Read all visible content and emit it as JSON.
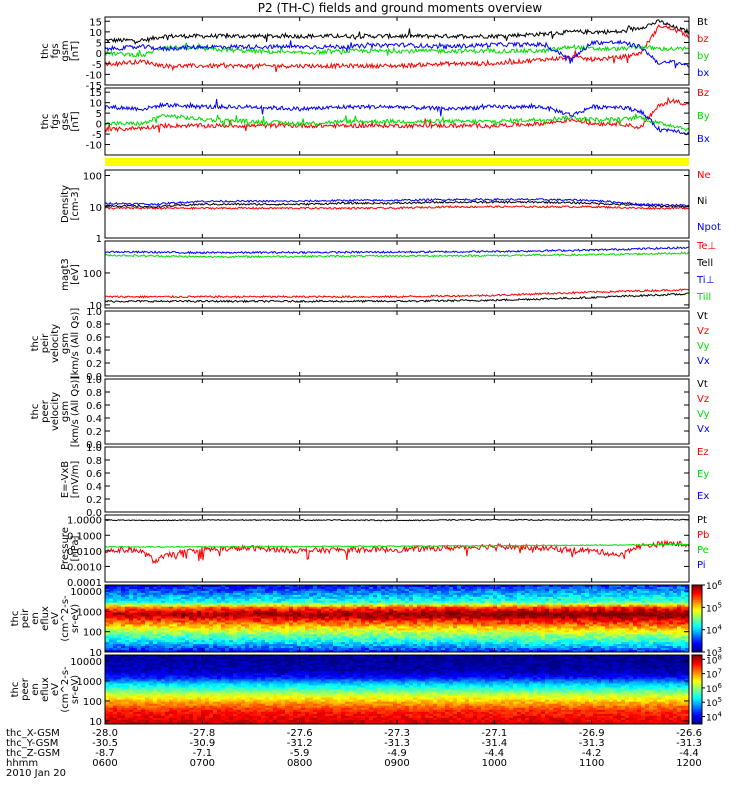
{
  "chart_data": {
    "type": "line",
    "title": "P2 (TH-C) fields and ground moments overview",
    "date": "2010 Jan 20",
    "x_axis": {
      "label": "hhmm",
      "ticks": [
        "0600",
        "0700",
        "0800",
        "0900",
        "1000",
        "1100",
        "1200"
      ],
      "ephemeris": [
        {
          "label": "thc_X-GSM",
          "values": [
            "-28.0",
            "-27.8",
            "-27.6",
            "-27.3",
            "-27.1",
            "-26.9",
            "-26.6"
          ]
        },
        {
          "label": "thc_Y-GSM",
          "values": [
            "-30.5",
            "-30.9",
            "-31.2",
            "-31.3",
            "-31.4",
            "-31.3",
            "-31.3"
          ]
        },
        {
          "label": "thc_Z-GSM",
          "values": [
            "-8.7",
            "-7.1",
            "-5.9",
            "-4.9",
            "-4.4",
            "-4.2",
            "-4.4"
          ]
        }
      ]
    },
    "panels": [
      {
        "id": "fgs-gsm",
        "ylabel": [
          "thc",
          "fgs",
          "gsm",
          "[nT]"
        ],
        "scale": "linear",
        "ylim": [
          -15,
          17
        ],
        "yticks": [
          "-15",
          "-10",
          "-5",
          "0",
          "5",
          "10",
          "15"
        ],
        "series": [
          {
            "name": "Bt",
            "color": "#000000",
            "x": [
              6.0,
              6.4,
              6.6,
              7.0,
              7.5,
              8.0,
              8.5,
              9.0,
              9.5,
              10.0,
              10.5,
              10.8,
              11.0,
              11.3,
              11.5,
              11.7,
              11.85,
              12.0
            ],
            "y": [
              6,
              6,
              8,
              8,
              8,
              8,
              8,
              8,
              8,
              8,
              9,
              10,
              10,
              10,
              12,
              15,
              12,
              10
            ]
          },
          {
            "name": "bz",
            "color": "#ff0000",
            "x": [
              6.0,
              6.4,
              6.6,
              7.0,
              7.5,
              8.0,
              8.5,
              9.0,
              9.5,
              10.0,
              10.5,
              10.8,
              11.0,
              11.3,
              11.5,
              11.7,
              11.85,
              12.0
            ],
            "y": [
              -5,
              -4,
              -6,
              -6,
              -6,
              -6,
              -6,
              -6,
              -5,
              -5,
              -3,
              -2,
              -3,
              -2,
              0,
              13,
              11,
              8
            ]
          },
          {
            "name": "by",
            "color": "#00dd00",
            "x": [
              6.0,
              6.4,
              6.6,
              7.0,
              7.5,
              8.0,
              8.5,
              9.0,
              9.5,
              10.0,
              10.5,
              10.8,
              11.0,
              11.3,
              11.5,
              11.7,
              11.85,
              12.0
            ],
            "y": [
              0,
              -1,
              3,
              2,
              1,
              0,
              1,
              1,
              1,
              1,
              1,
              3,
              2,
              2,
              3,
              2,
              2,
              2
            ]
          },
          {
            "name": "bx",
            "color": "#0000ff",
            "x": [
              6.0,
              6.4,
              6.6,
              7.0,
              7.5,
              8.0,
              8.5,
              9.0,
              9.5,
              10.0,
              10.5,
              10.8,
              11.0,
              11.3,
              11.5,
              11.7,
              11.85,
              12.0
            ],
            "y": [
              2,
              3,
              2,
              3,
              3,
              3,
              3,
              4,
              3,
              4,
              4,
              -3,
              5,
              5,
              3,
              -5,
              -4,
              -6
            ]
          }
        ]
      },
      {
        "id": "fgs-gse",
        "ylabel": [
          "thc",
          "fgs",
          "gse",
          "[nT]"
        ],
        "scale": "linear",
        "ylim": [
          -15,
          17
        ],
        "yticks": [
          "-10",
          "-5",
          "0",
          "5",
          "10",
          "15"
        ],
        "series": [
          {
            "name": "Bz",
            "color": "#ff0000",
            "x": [
              6.0,
              6.4,
              6.6,
              7.0,
              7.5,
              8.0,
              8.5,
              9.0,
              9.5,
              10.0,
              10.5,
              10.8,
              11.0,
              11.3,
              11.5,
              11.7,
              11.85,
              12.0
            ],
            "y": [
              -3,
              -2,
              -1,
              -1,
              -1,
              -1,
              -1,
              -1,
              -1,
              -1,
              0,
              2,
              0,
              0,
              -2,
              9,
              11,
              9
            ]
          },
          {
            "name": "By",
            "color": "#00dd00",
            "x": [
              6.0,
              6.4,
              6.6,
              7.0,
              7.5,
              8.0,
              8.5,
              9.0,
              9.5,
              10.0,
              10.5,
              10.8,
              11.0,
              11.3,
              11.5,
              11.7,
              11.85,
              12.0
            ],
            "y": [
              0,
              0,
              4,
              2,
              1,
              0,
              1,
              1,
              1,
              1,
              2,
              3,
              2,
              2,
              3,
              0,
              -1,
              -3
            ]
          },
          {
            "name": "Bx",
            "color": "#0000ff",
            "x": [
              6.0,
              6.4,
              6.6,
              7.0,
              7.5,
              8.0,
              8.5,
              9.0,
              9.5,
              10.0,
              10.5,
              10.8,
              11.0,
              11.3,
              11.5,
              11.7,
              11.85,
              12.0
            ],
            "y": [
              8,
              7,
              9,
              8,
              8,
              7,
              8,
              8,
              7,
              8,
              8,
              4,
              8,
              8,
              6,
              -3,
              -3,
              -5
            ]
          }
        ]
      },
      {
        "id": "mode-bar",
        "type": "bar",
        "color": "#ffff00"
      },
      {
        "id": "density",
        "ylabel": [
          "Density",
          "[cm-3]"
        ],
        "scale": "log",
        "ylim": [
          1,
          150
        ],
        "yticks": [
          "1",
          "10",
          "100"
        ],
        "series": [
          {
            "name": "Ne",
            "color": "#ff0000",
            "x": [
              6.0,
              6.5,
              7.0,
              7.5,
              8.0,
              8.5,
              9.0,
              9.5,
              10.0,
              10.5,
              11.0,
              11.5,
              12.0
            ],
            "y": [
              9,
              9,
              9,
              9,
              9,
              9,
              9,
              10,
              10,
              10,
              10,
              9,
              9
            ]
          },
          {
            "name": "Ni",
            "color": "#000000",
            "x": [
              6.0,
              6.5,
              7.0,
              7.5,
              8.0,
              8.5,
              9.0,
              9.5,
              10.0,
              10.5,
              11.0,
              11.5,
              12.0
            ],
            "y": [
              11,
              10,
              12,
              12,
              12,
              13,
              13,
              14,
              14,
              14,
              13,
              11,
              10
            ]
          },
          {
            "name": "Npot",
            "color": "#0000ff",
            "x": [
              6.0,
              6.5,
              7.0,
              7.5,
              8.0,
              8.5,
              9.0,
              9.5,
              10.0,
              10.5,
              11.0,
              11.5,
              12.0
            ],
            "y": [
              13,
              12,
              15,
              15,
              15,
              16,
              16,
              17,
              17,
              17,
              16,
              12,
              11
            ]
          }
        ]
      },
      {
        "id": "temperature",
        "ylabel": [
          "magt3",
          "[eV]"
        ],
        "scale": "log",
        "ylim": [
          8,
          1000
        ],
        "yticks": [
          "10",
          "100"
        ],
        "series": [
          {
            "name": "Te⊥",
            "color": "#ff0000",
            "x": [
              6.0,
              7.0,
              8.0,
              9.0,
              10.0,
              11.0,
              12.0
            ],
            "y": [
              18,
              18,
              18,
              18,
              20,
              25,
              30
            ]
          },
          {
            "name": "Tell",
            "color": "#000000",
            "x": [
              6.0,
              7.0,
              8.0,
              9.0,
              10.0,
              11.0,
              12.0
            ],
            "y": [
              13,
              13,
              13,
              13,
              14,
              17,
              22
            ]
          },
          {
            "name": "Ti⊥",
            "color": "#0000ff",
            "x": [
              6.0,
              7.0,
              8.0,
              9.0,
              10.0,
              11.0,
              12.0
            ],
            "y": [
              460,
              430,
              440,
              450,
              470,
              520,
              620
            ]
          },
          {
            "name": "Till",
            "color": "#00dd00",
            "x": [
              6.0,
              7.0,
              8.0,
              9.0,
              10.0,
              11.0,
              12.0
            ],
            "y": [
              360,
              320,
              330,
              340,
              350,
              370,
              420
            ]
          }
        ]
      },
      {
        "id": "peir-velocity",
        "ylabel": [
          "thc",
          "peir",
          "velocity",
          "gsm",
          "[km/s (All Qs)]"
        ],
        "scale": "linear",
        "ylim": [
          0,
          1
        ],
        "yticks": [
          "0.0",
          "0.2",
          "0.4",
          "0.6",
          "0.8",
          "1.0"
        ],
        "series": [
          {
            "name": "Vt",
            "color": "#000000",
            "x": [],
            "y": []
          },
          {
            "name": "Vz",
            "color": "#ff0000",
            "x": [],
            "y": []
          },
          {
            "name": "Vy",
            "color": "#00dd00",
            "x": [],
            "y": []
          },
          {
            "name": "Vx",
            "color": "#0000ff",
            "x": [],
            "y": []
          }
        ]
      },
      {
        "id": "peer-velocity",
        "ylabel": [
          "thc",
          "peer",
          "velocity",
          "gsm",
          "[km/s (All Qs)]"
        ],
        "scale": "linear",
        "ylim": [
          0,
          1
        ],
        "yticks": [
          "0.0",
          "0.2",
          "0.4",
          "0.6",
          "0.8",
          "1.0"
        ],
        "series": [
          {
            "name": "Vt",
            "color": "#000000",
            "x": [],
            "y": []
          },
          {
            "name": "Vz",
            "color": "#ff0000",
            "x": [],
            "y": []
          },
          {
            "name": "Vy",
            "color": "#00dd00",
            "x": [],
            "y": []
          },
          {
            "name": "Vx",
            "color": "#0000ff",
            "x": [],
            "y": []
          }
        ]
      },
      {
        "id": "efield",
        "ylabel": [
          "E=-VxB",
          "[mV/m]"
        ],
        "scale": "linear",
        "ylim": [
          0,
          1
        ],
        "yticks": [
          "0.0",
          "0.2",
          "0.4",
          "0.6",
          "0.8",
          "1.0"
        ],
        "series": [
          {
            "name": "Ez",
            "color": "#ff0000",
            "x": [],
            "y": []
          },
          {
            "name": "Ey",
            "color": "#00dd00",
            "x": [],
            "y": []
          },
          {
            "name": "Ex",
            "color": "#0000ff",
            "x": [],
            "y": []
          }
        ]
      },
      {
        "id": "pressure",
        "ylabel": [
          "Pressure",
          "[nPa]"
        ],
        "scale": "log",
        "ylim": [
          0.0001,
          2
        ],
        "yticks": [
          "0.0001",
          "0.0010",
          "0.0100",
          "0.1000",
          "1.0000"
        ],
        "series": [
          {
            "name": "Pt",
            "color": "#000000",
            "x": [
              6.0,
              6.5,
              7.0,
              7.5,
              8.0,
              8.5,
              9.0,
              9.5,
              10.0,
              10.5,
              11.0,
              11.5,
              12.0
            ],
            "y": [
              0.95,
              0.9,
              0.95,
              0.95,
              0.95,
              0.95,
              0.9,
              0.95,
              1.0,
              0.95,
              0.95,
              1.0,
              1.0
            ]
          },
          {
            "name": "Pb",
            "color": "#ff0000",
            "x": [
              6.0,
              6.3,
              6.5,
              6.8,
              7.0,
              7.5,
              8.0,
              8.5,
              9.0,
              9.5,
              10.0,
              10.5,
              11.0,
              11.3,
              11.5,
              11.8,
              12.0
            ],
            "y": [
              0.01,
              0.012,
              0.002,
              0.008,
              0.012,
              0.015,
              0.01,
              0.012,
              0.012,
              0.015,
              0.02,
              0.015,
              0.01,
              0.005,
              0.02,
              0.03,
              0.025
            ]
          },
          {
            "name": "Pe",
            "color": "#00dd00",
            "x": [
              6.0,
              7.0,
              8.0,
              9.0,
              10.0,
              11.0,
              12.0
            ],
            "y": [
              0.018,
              0.018,
              0.019,
              0.02,
              0.021,
              0.023,
              0.026
            ]
          },
          {
            "name": "Pi",
            "color": "#0000ff",
            "x": [],
            "y": []
          }
        ]
      },
      {
        "id": "peir-eflux",
        "type": "heatmap",
        "ylabel": [
          "thc",
          "peir",
          "en",
          "eflux",
          "eV",
          "(cm^2-s-",
          "sr-eV)"
        ],
        "scale": "log",
        "ylim": [
          10,
          20000
        ],
        "yticks": [
          "10",
          "100",
          "1000",
          "10000"
        ],
        "colorbar": {
          "scale": "log",
          "range": [
            1000,
            1000000
          ],
          "ticks": [
            "10",
            "10",
            "10",
            "10"
          ],
          "exponents": [
            "3",
            "4",
            "5",
            "6"
          ]
        },
        "profile": {
          "energy": [
            10,
            30,
            100,
            300,
            700,
            1500,
            3000,
            10000,
            20000
          ],
          "log_flux": [
            3.3,
            4.0,
            4.6,
            5.3,
            5.9,
            5.3,
            4.1,
            3.6,
            3.3
          ]
        }
      },
      {
        "id": "peer-eflux",
        "type": "heatmap",
        "ylabel": [
          "thc",
          "peer",
          "en",
          "eflux",
          "eV",
          "(cm^2-s-",
          "sr-eV)"
        ],
        "scale": "log",
        "ylim": [
          7,
          20000
        ],
        "yticks": [
          "10",
          "100",
          "1000",
          "10000"
        ],
        "colorbar": {
          "scale": "log",
          "range": [
            3000,
            200000000
          ],
          "ticks": [
            "10",
            "10",
            "10",
            "10",
            "10"
          ],
          "exponents": [
            "4",
            "5",
            "6",
            "7",
            "8"
          ]
        },
        "profile": {
          "energy": [
            7,
            15,
            30,
            60,
            100,
            200,
            400,
            800,
            1500,
            3000,
            20000
          ],
          "log_flux": [
            8.0,
            7.8,
            7.6,
            7.2,
            6.8,
            6.3,
            5.6,
            5.0,
            4.2,
            3.8,
            3.6
          ]
        }
      }
    ]
  }
}
